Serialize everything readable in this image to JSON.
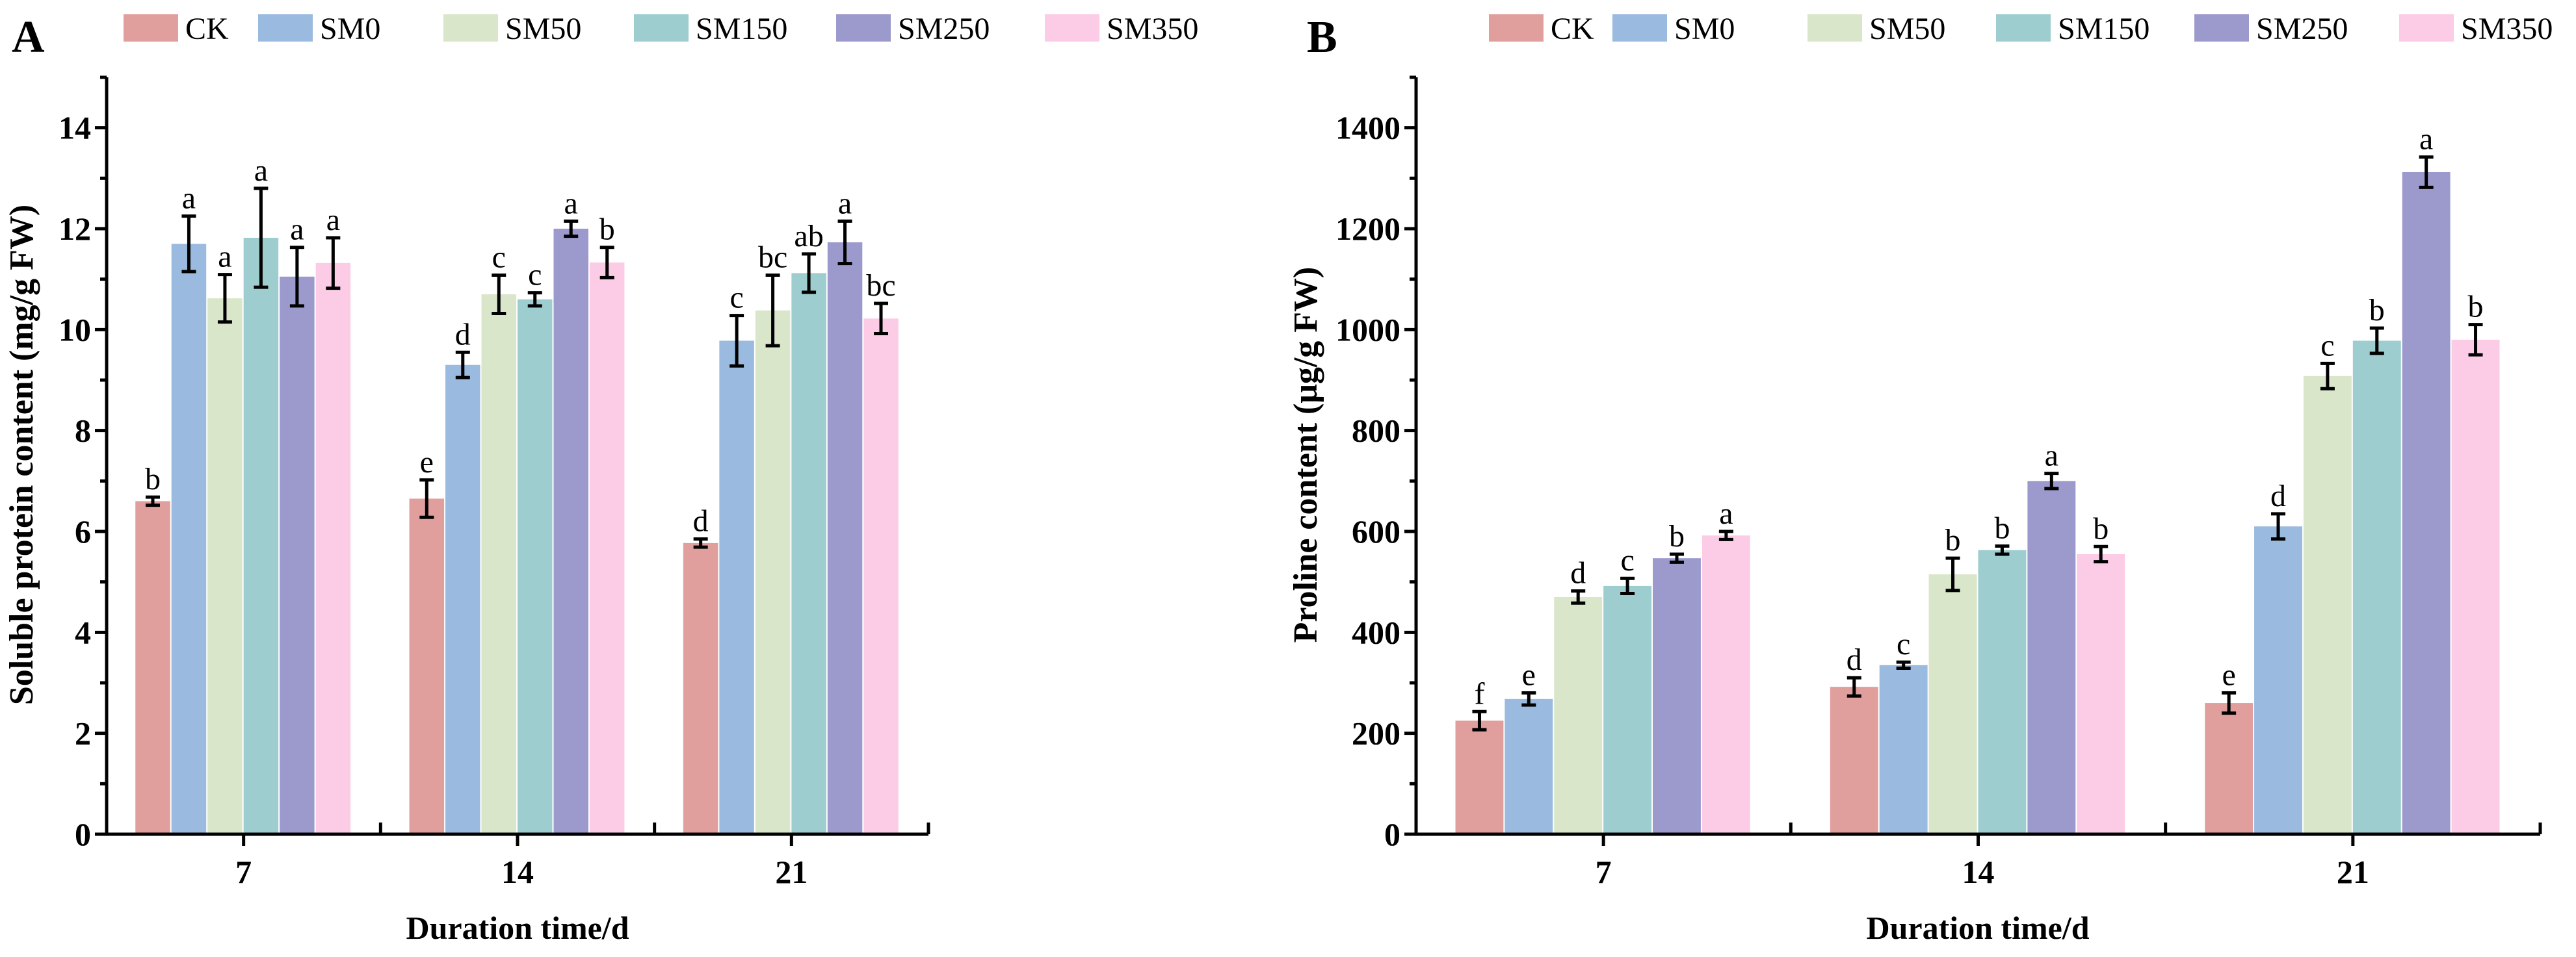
{
  "colors": {
    "CK": "#e09e9c",
    "SM0": "#9abadf",
    "SM50": "#d9e6c9",
    "SM150": "#9dcdcf",
    "SM250": "#9c9acd",
    "SM350": "#fccce6"
  },
  "chart_data": [
    {
      "type": "bar",
      "panel": "A",
      "categories": [
        "7",
        "14",
        "21"
      ],
      "xlabel": "Duration time/d",
      "ylabel": "Soluble protein content (mg/g FW)",
      "ylim": [
        0,
        15
      ],
      "yticks": [
        0,
        2,
        4,
        6,
        8,
        10,
        12,
        14
      ],
      "minor_step": 1,
      "legend": [
        "CK",
        "SM0",
        "SM50",
        "SM150",
        "SM250",
        "SM350"
      ],
      "legend_position": "top",
      "series": [
        {
          "name": "CK",
          "values": [
            6.6,
            6.65,
            5.77
          ],
          "errors": [
            0.08,
            0.37,
            0.08
          ],
          "letters": [
            "b",
            "e",
            "d"
          ]
        },
        {
          "name": "SM0",
          "values": [
            11.7,
            9.3,
            9.78
          ],
          "errors": [
            0.55,
            0.25,
            0.5
          ],
          "letters": [
            "a",
            "d",
            "c"
          ]
        },
        {
          "name": "SM50",
          "values": [
            10.62,
            10.7,
            10.38
          ],
          "errors": [
            0.47,
            0.38,
            0.7
          ],
          "letters": [
            "a",
            "c",
            "bc"
          ]
        },
        {
          "name": "SM150",
          "values": [
            11.82,
            10.6,
            11.12
          ],
          "errors": [
            0.98,
            0.13,
            0.38
          ],
          "letters": [
            "a",
            "c",
            "ab"
          ]
        },
        {
          "name": "SM250",
          "values": [
            11.05,
            12.0,
            11.73
          ],
          "errors": [
            0.58,
            0.15,
            0.42
          ],
          "letters": [
            "a",
            "a",
            "a"
          ]
        },
        {
          "name": "SM350",
          "values": [
            11.32,
            11.33,
            10.22
          ],
          "errors": [
            0.5,
            0.3,
            0.3
          ],
          "letters": [
            "a",
            "b",
            "bc"
          ]
        }
      ]
    },
    {
      "type": "bar",
      "panel": "B",
      "categories": [
        "7",
        "14",
        "21"
      ],
      "xlabel": "Duration time/d",
      "ylabel": "Proline content (μg/g FW)",
      "ylim": [
        0,
        1500
      ],
      "yticks": [
        0,
        200,
        400,
        600,
        800,
        1000,
        1200,
        1400
      ],
      "minor_step": 100,
      "legend": [
        "CK",
        "SM0",
        "SM50",
        "SM150",
        "SM250",
        "SM350"
      ],
      "legend_position": "top",
      "series": [
        {
          "name": "CK",
          "values": [
            225,
            292,
            260
          ],
          "errors": [
            18,
            18,
            20
          ],
          "letters": [
            "f",
            "d",
            "e"
          ]
        },
        {
          "name": "SM0",
          "values": [
            268,
            335,
            610
          ],
          "errors": [
            12,
            6,
            25
          ],
          "letters": [
            "e",
            "c",
            "d"
          ]
        },
        {
          "name": "SM50",
          "values": [
            470,
            515,
            908
          ],
          "errors": [
            12,
            32,
            25
          ],
          "letters": [
            "d",
            "b",
            "c"
          ]
        },
        {
          "name": "SM150",
          "values": [
            492,
            563,
            978
          ],
          "errors": [
            15,
            8,
            25
          ],
          "letters": [
            "c",
            "b",
            "b"
          ]
        },
        {
          "name": "SM250",
          "values": [
            547,
            700,
            1312
          ],
          "errors": [
            8,
            15,
            30
          ],
          "letters": [
            "b",
            "a",
            "a"
          ]
        },
        {
          "name": "SM350",
          "values": [
            592,
            555,
            980
          ],
          "errors": [
            8,
            15,
            30
          ],
          "letters": [
            "a",
            "b",
            "b"
          ]
        }
      ]
    }
  ]
}
